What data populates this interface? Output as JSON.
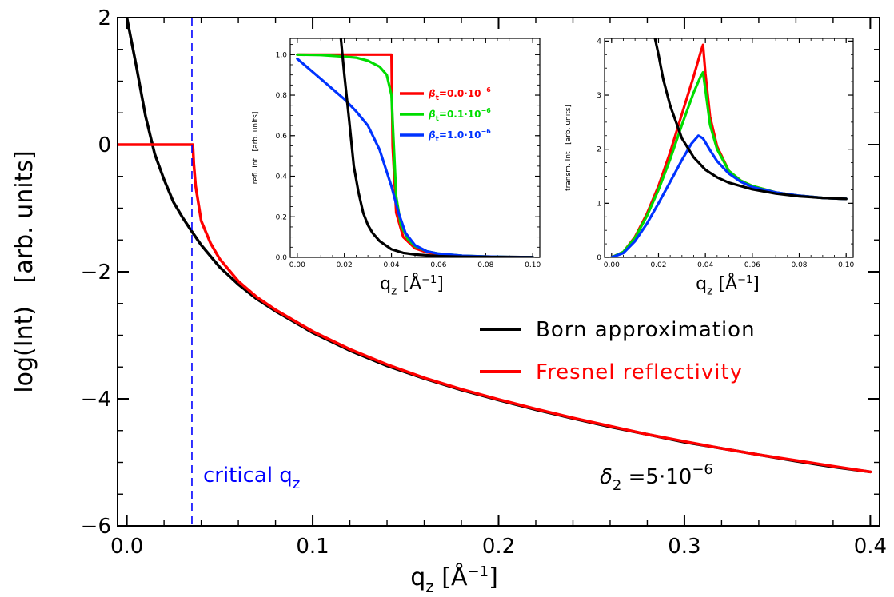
{
  "chart_data": [
    {
      "id": "main",
      "type": "line",
      "xlabel": "q_z  [Å⁻¹]",
      "ylabel": "log(Int)   [arb. units]",
      "xlim": [
        -0.005,
        0.405
      ],
      "ylim": [
        -6,
        2
      ],
      "xticks": [
        0.0,
        0.1,
        0.2,
        0.3,
        0.4
      ],
      "xtick_labels": [
        "0.0",
        "0.1",
        "0.2",
        "0.3",
        "0.4"
      ],
      "yticks": [
        -6,
        -4,
        -2,
        0,
        2
      ],
      "ytick_labels": [
        "−6",
        "−4",
        "−2",
        "0",
        "2"
      ],
      "grid": false,
      "legend_position": "lower-right",
      "series": [
        {
          "name": "Born approximation",
          "color": "#000000",
          "x": [
            0.0,
            0.005,
            0.01,
            0.015,
            0.02,
            0.025,
            0.03,
            0.035,
            0.04,
            0.05,
            0.06,
            0.07,
            0.08,
            0.1,
            0.12,
            0.14,
            0.16,
            0.18,
            0.2,
            0.22,
            0.24,
            0.26,
            0.28,
            0.3,
            0.32,
            0.34,
            0.36,
            0.38,
            0.4
          ],
          "y": [
            2.0,
            1.25,
            0.45,
            -0.15,
            -0.55,
            -0.9,
            -1.15,
            -1.37,
            -1.58,
            -1.93,
            -2.2,
            -2.43,
            -2.62,
            -2.96,
            -3.24,
            -3.48,
            -3.68,
            -3.86,
            -4.02,
            -4.17,
            -4.31,
            -4.44,
            -4.56,
            -4.68,
            -4.78,
            -4.88,
            -4.98,
            -5.07,
            -5.15
          ]
        },
        {
          "name": "Fresnel reflectivity",
          "color": "#ff0000",
          "x": [
            -0.005,
            0.0,
            0.01,
            0.02,
            0.03,
            0.0355,
            0.036,
            0.037,
            0.04,
            0.045,
            0.05,
            0.06,
            0.07,
            0.08,
            0.1,
            0.12,
            0.14,
            0.16,
            0.18,
            0.2,
            0.22,
            0.24,
            0.26,
            0.28,
            0.3,
            0.32,
            0.34,
            0.36,
            0.38,
            0.4
          ],
          "y": [
            0.0,
            0.0,
            0.0,
            0.0,
            0.0,
            0.0,
            -0.3,
            -0.65,
            -1.2,
            -1.55,
            -1.8,
            -2.15,
            -2.4,
            -2.6,
            -2.94,
            -3.22,
            -3.46,
            -3.67,
            -3.85,
            -4.01,
            -4.16,
            -4.3,
            -4.43,
            -4.56,
            -4.67,
            -4.78,
            -4.88,
            -4.97,
            -5.06,
            -5.15
          ]
        }
      ],
      "annotations": {
        "critical_label": "critical q",
        "critical_sub": "z",
        "critical_x": 0.035,
        "critical_color": "#0000ff",
        "delta_sym": "δ",
        "delta_sub": "2",
        "delta_eq": " =5·10",
        "delta_exp": "−6"
      }
    },
    {
      "id": "inset_reflectivity",
      "type": "line",
      "xlabel": "q_z  [Å⁻¹]",
      "ylabel": "refl. Int   [arb. units]",
      "xlim": [
        -0.003,
        0.103
      ],
      "ylim": [
        0,
        1.08
      ],
      "xticks": [
        0.0,
        0.02,
        0.04,
        0.06,
        0.08,
        0.1
      ],
      "xtick_labels": [
        "0.00",
        "0.02",
        "0.04",
        "0.06",
        "0.08",
        "0.10"
      ],
      "yticks": [
        0.0,
        0.2,
        0.4,
        0.6,
        0.8,
        1.0
      ],
      "ytick_labels": [
        "0.0",
        "0.2",
        "0.4",
        "0.6",
        "0.8",
        "1.0"
      ],
      "legend_position": "top-right",
      "series": [
        {
          "name": "β_t=0.0·10⁻⁶",
          "legend_sym": "β",
          "legend_sub": "t",
          "legend_text": "=0.0·10",
          "legend_exp": "−6",
          "color": "#ff0000",
          "x": [
            0.0,
            0.01,
            0.02,
            0.03,
            0.035,
            0.039,
            0.04,
            0.0405,
            0.042,
            0.045,
            0.05,
            0.055,
            0.06,
            0.07,
            0.08,
            0.09,
            0.1
          ],
          "y": [
            1.0,
            1.0,
            1.0,
            1.0,
            1.0,
            1.0,
            1.0,
            0.55,
            0.22,
            0.1,
            0.045,
            0.025,
            0.015,
            0.007,
            0.004,
            0.002,
            0.001
          ]
        },
        {
          "name": "β_t=0.1·10⁻⁶",
          "legend_sym": "β",
          "legend_sub": "t",
          "legend_text": "=0.1·10",
          "legend_exp": "−6",
          "color": "#00dd00",
          "x": [
            0.0,
            0.01,
            0.02,
            0.025,
            0.03,
            0.035,
            0.038,
            0.04,
            0.041,
            0.042,
            0.044,
            0.047,
            0.05,
            0.055,
            0.06,
            0.07,
            0.08,
            0.09,
            0.1
          ],
          "y": [
            1.0,
            0.998,
            0.99,
            0.985,
            0.97,
            0.94,
            0.9,
            0.8,
            0.55,
            0.3,
            0.16,
            0.09,
            0.055,
            0.03,
            0.018,
            0.008,
            0.004,
            0.002,
            0.001
          ]
        },
        {
          "name": "β_t=1.0·10⁻⁶",
          "legend_sym": "β",
          "legend_sub": "t",
          "legend_text": "=1.0·10",
          "legend_exp": "−6",
          "color": "#0033ff",
          "x": [
            0.0,
            0.005,
            0.01,
            0.015,
            0.02,
            0.025,
            0.03,
            0.035,
            0.04,
            0.043,
            0.046,
            0.05,
            0.055,
            0.06,
            0.07,
            0.08,
            0.09,
            0.1
          ],
          "y": [
            0.98,
            0.93,
            0.88,
            0.83,
            0.78,
            0.72,
            0.65,
            0.53,
            0.35,
            0.22,
            0.12,
            0.06,
            0.03,
            0.018,
            0.008,
            0.004,
            0.002,
            0.001
          ]
        },
        {
          "name": "",
          "color": "#000000",
          "x": [
            0.0185,
            0.02,
            0.022,
            0.024,
            0.026,
            0.028,
            0.03,
            0.032,
            0.035,
            0.04,
            0.045,
            0.05,
            0.06,
            0.07,
            0.08,
            0.09,
            0.1
          ],
          "y": [
            1.08,
            0.9,
            0.68,
            0.45,
            0.32,
            0.22,
            0.16,
            0.12,
            0.08,
            0.04,
            0.022,
            0.014,
            0.006,
            0.003,
            0.002,
            0.001,
            0.0005
          ]
        }
      ]
    },
    {
      "id": "inset_transmission",
      "type": "line",
      "xlabel": "q_z  [Å⁻¹]",
      "ylabel": "transm. Int   [arb. units]",
      "xlim": [
        -0.003,
        0.103
      ],
      "ylim": [
        0,
        4.05
      ],
      "xticks": [
        0.0,
        0.02,
        0.04,
        0.06,
        0.08,
        0.1
      ],
      "xtick_labels": [
        "0.00",
        "0.02",
        "0.04",
        "0.06",
        "0.08",
        "0.10"
      ],
      "yticks": [
        0,
        1,
        2,
        3,
        4
      ],
      "ytick_labels": [
        "0",
        "1",
        "2",
        "3",
        "4"
      ],
      "series": [
        {
          "name": "",
          "color": "#ff0000",
          "x": [
            0.0,
            0.005,
            0.01,
            0.015,
            0.02,
            0.025,
            0.03,
            0.035,
            0.038,
            0.039,
            0.04,
            0.042,
            0.045,
            0.05,
            0.055,
            0.06,
            0.07,
            0.08,
            0.09,
            0.1
          ],
          "y": [
            0.0,
            0.1,
            0.38,
            0.8,
            1.32,
            1.95,
            2.65,
            3.35,
            3.8,
            3.93,
            3.4,
            2.6,
            2.05,
            1.6,
            1.42,
            1.32,
            1.2,
            1.14,
            1.1,
            1.08
          ]
        },
        {
          "name": "",
          "color": "#00dd00",
          "x": [
            0.0,
            0.005,
            0.01,
            0.015,
            0.02,
            0.025,
            0.03,
            0.035,
            0.038,
            0.039,
            0.04,
            0.042,
            0.045,
            0.05,
            0.055,
            0.06,
            0.07,
            0.08,
            0.09,
            0.1
          ],
          "y": [
            0.0,
            0.1,
            0.36,
            0.76,
            1.25,
            1.82,
            2.45,
            3.05,
            3.35,
            3.42,
            3.1,
            2.45,
            2.0,
            1.6,
            1.42,
            1.32,
            1.2,
            1.14,
            1.1,
            1.08
          ]
        },
        {
          "name": "",
          "color": "#0033ff",
          "x": [
            0.0,
            0.005,
            0.01,
            0.015,
            0.02,
            0.025,
            0.03,
            0.034,
            0.037,
            0.039,
            0.042,
            0.045,
            0.05,
            0.055,
            0.06,
            0.07,
            0.08,
            0.09,
            0.1
          ],
          "y": [
            0.0,
            0.08,
            0.3,
            0.62,
            1.0,
            1.4,
            1.8,
            2.1,
            2.25,
            2.2,
            1.98,
            1.78,
            1.55,
            1.4,
            1.3,
            1.2,
            1.14,
            1.1,
            1.08
          ]
        },
        {
          "name": "",
          "color": "#000000",
          "x": [
            0.0185,
            0.02,
            0.022,
            0.025,
            0.03,
            0.035,
            0.04,
            0.045,
            0.05,
            0.06,
            0.07,
            0.08,
            0.09,
            0.1
          ],
          "y": [
            4.05,
            3.75,
            3.3,
            2.8,
            2.2,
            1.85,
            1.62,
            1.48,
            1.38,
            1.26,
            1.18,
            1.13,
            1.1,
            1.08
          ]
        }
      ]
    }
  ]
}
